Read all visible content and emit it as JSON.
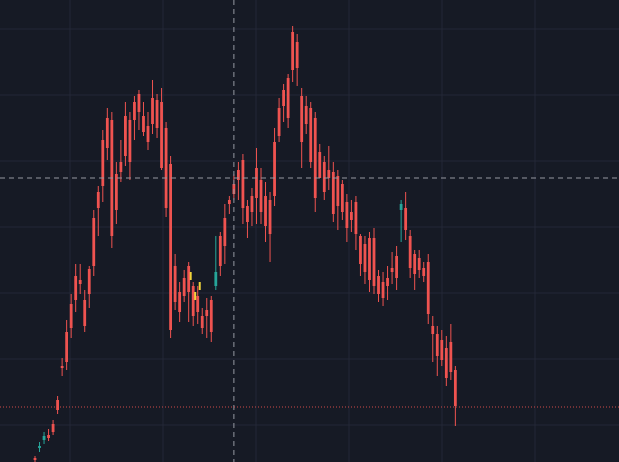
{
  "colors": {
    "background": "#161a25",
    "grid": "#232736",
    "up": "#26a69a",
    "down": "#ef5350",
    "crosshair": "#9598a1",
    "last_price_line": "#ef5350",
    "highlight": "#f0d43a"
  },
  "chart_data": {
    "type": "candlestick",
    "title": "",
    "xlabel": "",
    "ylabel": "",
    "ylim": [
      0,
      462
    ],
    "grid": true,
    "crosshair": {
      "x_index": 44,
      "y_value": 284
    },
    "last_price": 55,
    "candles": [
      [
        4,
        2,
        6,
        0
      ],
      [
        14,
        16,
        20,
        10
      ],
      [
        22,
        26,
        30,
        18
      ],
      [
        27,
        24,
        33,
        21
      ],
      [
        38,
        30,
        42,
        27
      ],
      [
        62,
        52,
        66,
        48
      ],
      [
        96,
        94,
        104,
        86
      ],
      [
        130,
        100,
        142,
        92
      ],
      [
        158,
        134,
        168,
        124
      ],
      [
        186,
        162,
        198,
        150
      ],
      [
        182,
        178,
        198,
        168
      ],
      [
        162,
        136,
        172,
        130
      ],
      [
        193,
        168,
        196,
        154
      ],
      [
        244,
        196,
        252,
        186
      ],
      [
        270,
        254,
        276,
        226
      ],
      [
        322,
        276,
        332,
        260
      ],
      [
        344,
        314,
        354,
        302
      ],
      [
        342,
        226,
        350,
        214
      ],
      [
        288,
        252,
        300,
        238
      ],
      [
        300,
        290,
        322,
        280
      ],
      [
        346,
        306,
        360,
        296
      ],
      [
        342,
        300,
        350,
        282
      ],
      [
        360,
        342,
        366,
        322
      ],
      [
        368,
        350,
        372,
        332
      ],
      [
        346,
        330,
        360,
        326
      ],
      [
        336,
        320,
        350,
        312
      ],
      [
        364,
        338,
        382,
        328
      ],
      [
        362,
        334,
        368,
        324
      ],
      [
        360,
        294,
        374,
        292
      ],
      [
        334,
        254,
        340,
        245
      ],
      [
        298,
        132,
        306,
        124
      ],
      [
        196,
        160,
        208,
        152
      ],
      [
        170,
        150,
        180,
        140
      ],
      [
        184,
        166,
        192,
        160
      ],
      [
        196,
        170,
        200,
        140
      ],
      [
        176,
        146,
        180,
        136
      ],
      [
        166,
        150,
        176,
        138
      ],
      [
        146,
        134,
        154,
        128
      ],
      [
        152,
        146,
        164,
        124
      ],
      [
        162,
        130,
        166,
        120
      ],
      [
        176,
        190,
        226,
        172
      ],
      [
        226,
        196,
        230,
        186
      ],
      [
        244,
        216,
        258,
        198
      ],
      [
        262,
        258,
        266,
        248
      ],
      [
        278,
        268,
        288,
        262
      ],
      [
        292,
        282,
        300,
        262
      ],
      [
        302,
        254,
        308,
        238
      ],
      [
        256,
        240,
        262,
        224
      ],
      [
        266,
        250,
        274,
        236
      ],
      [
        294,
        264,
        314,
        238
      ],
      [
        282,
        250,
        294,
        238
      ],
      [
        266,
        236,
        280,
        220
      ],
      [
        262,
        228,
        270,
        200
      ],
      [
        320,
        266,
        334,
        256
      ],
      [
        354,
        326,
        364,
        320
      ],
      [
        372,
        356,
        378,
        340
      ],
      [
        384,
        344,
        388,
        334
      ],
      [
        430,
        392,
        436,
        380
      ],
      [
        420,
        394,
        428,
        376
      ],
      [
        366,
        320,
        374,
        294
      ],
      [
        356,
        338,
        366,
        328
      ],
      [
        354,
        300,
        360,
        294
      ],
      [
        344,
        264,
        350,
        250
      ],
      [
        310,
        284,
        318,
        286
      ],
      [
        300,
        270,
        306,
        262
      ],
      [
        292,
        284,
        316,
        272
      ],
      [
        290,
        248,
        300,
        240
      ],
      [
        286,
        256,
        292,
        232
      ],
      [
        278,
        250,
        282,
        242
      ],
      [
        260,
        234,
        268,
        220
      ],
      [
        250,
        242,
        262,
        230
      ],
      [
        260,
        228,
        266,
        212
      ],
      [
        226,
        198,
        228,
        186
      ],
      [
        218,
        190,
        226,
        178
      ],
      [
        224,
        182,
        230,
        170
      ],
      [
        224,
        176,
        234,
        168
      ],
      [
        186,
        168,
        192,
        160
      ],
      [
        180,
        164,
        190,
        156
      ],
      [
        184,
        176,
        196,
        162
      ],
      [
        194,
        190,
        210,
        178
      ],
      [
        206,
        184,
        216,
        172
      ],
      [
        252,
        258,
        262,
        220
      ],
      [
        254,
        232,
        270,
        222
      ],
      [
        226,
        194,
        232,
        184
      ],
      [
        208,
        188,
        212,
        172
      ],
      [
        204,
        192,
        212,
        184
      ],
      [
        194,
        186,
        200,
        180
      ],
      [
        200,
        148,
        208,
        138
      ],
      [
        136,
        128,
        146,
        100
      ],
      [
        128,
        106,
        136,
        86
      ],
      [
        122,
        102,
        132,
        96
      ],
      [
        114,
        84,
        126,
        76
      ],
      [
        120,
        90,
        138,
        82
      ],
      [
        92,
        56,
        96,
        36
      ]
    ],
    "highlight_marks": [
      {
        "index": 34,
        "value": 186
      },
      {
        "index": 35,
        "value": 166
      },
      {
        "index": 36,
        "value": 176
      }
    ]
  }
}
